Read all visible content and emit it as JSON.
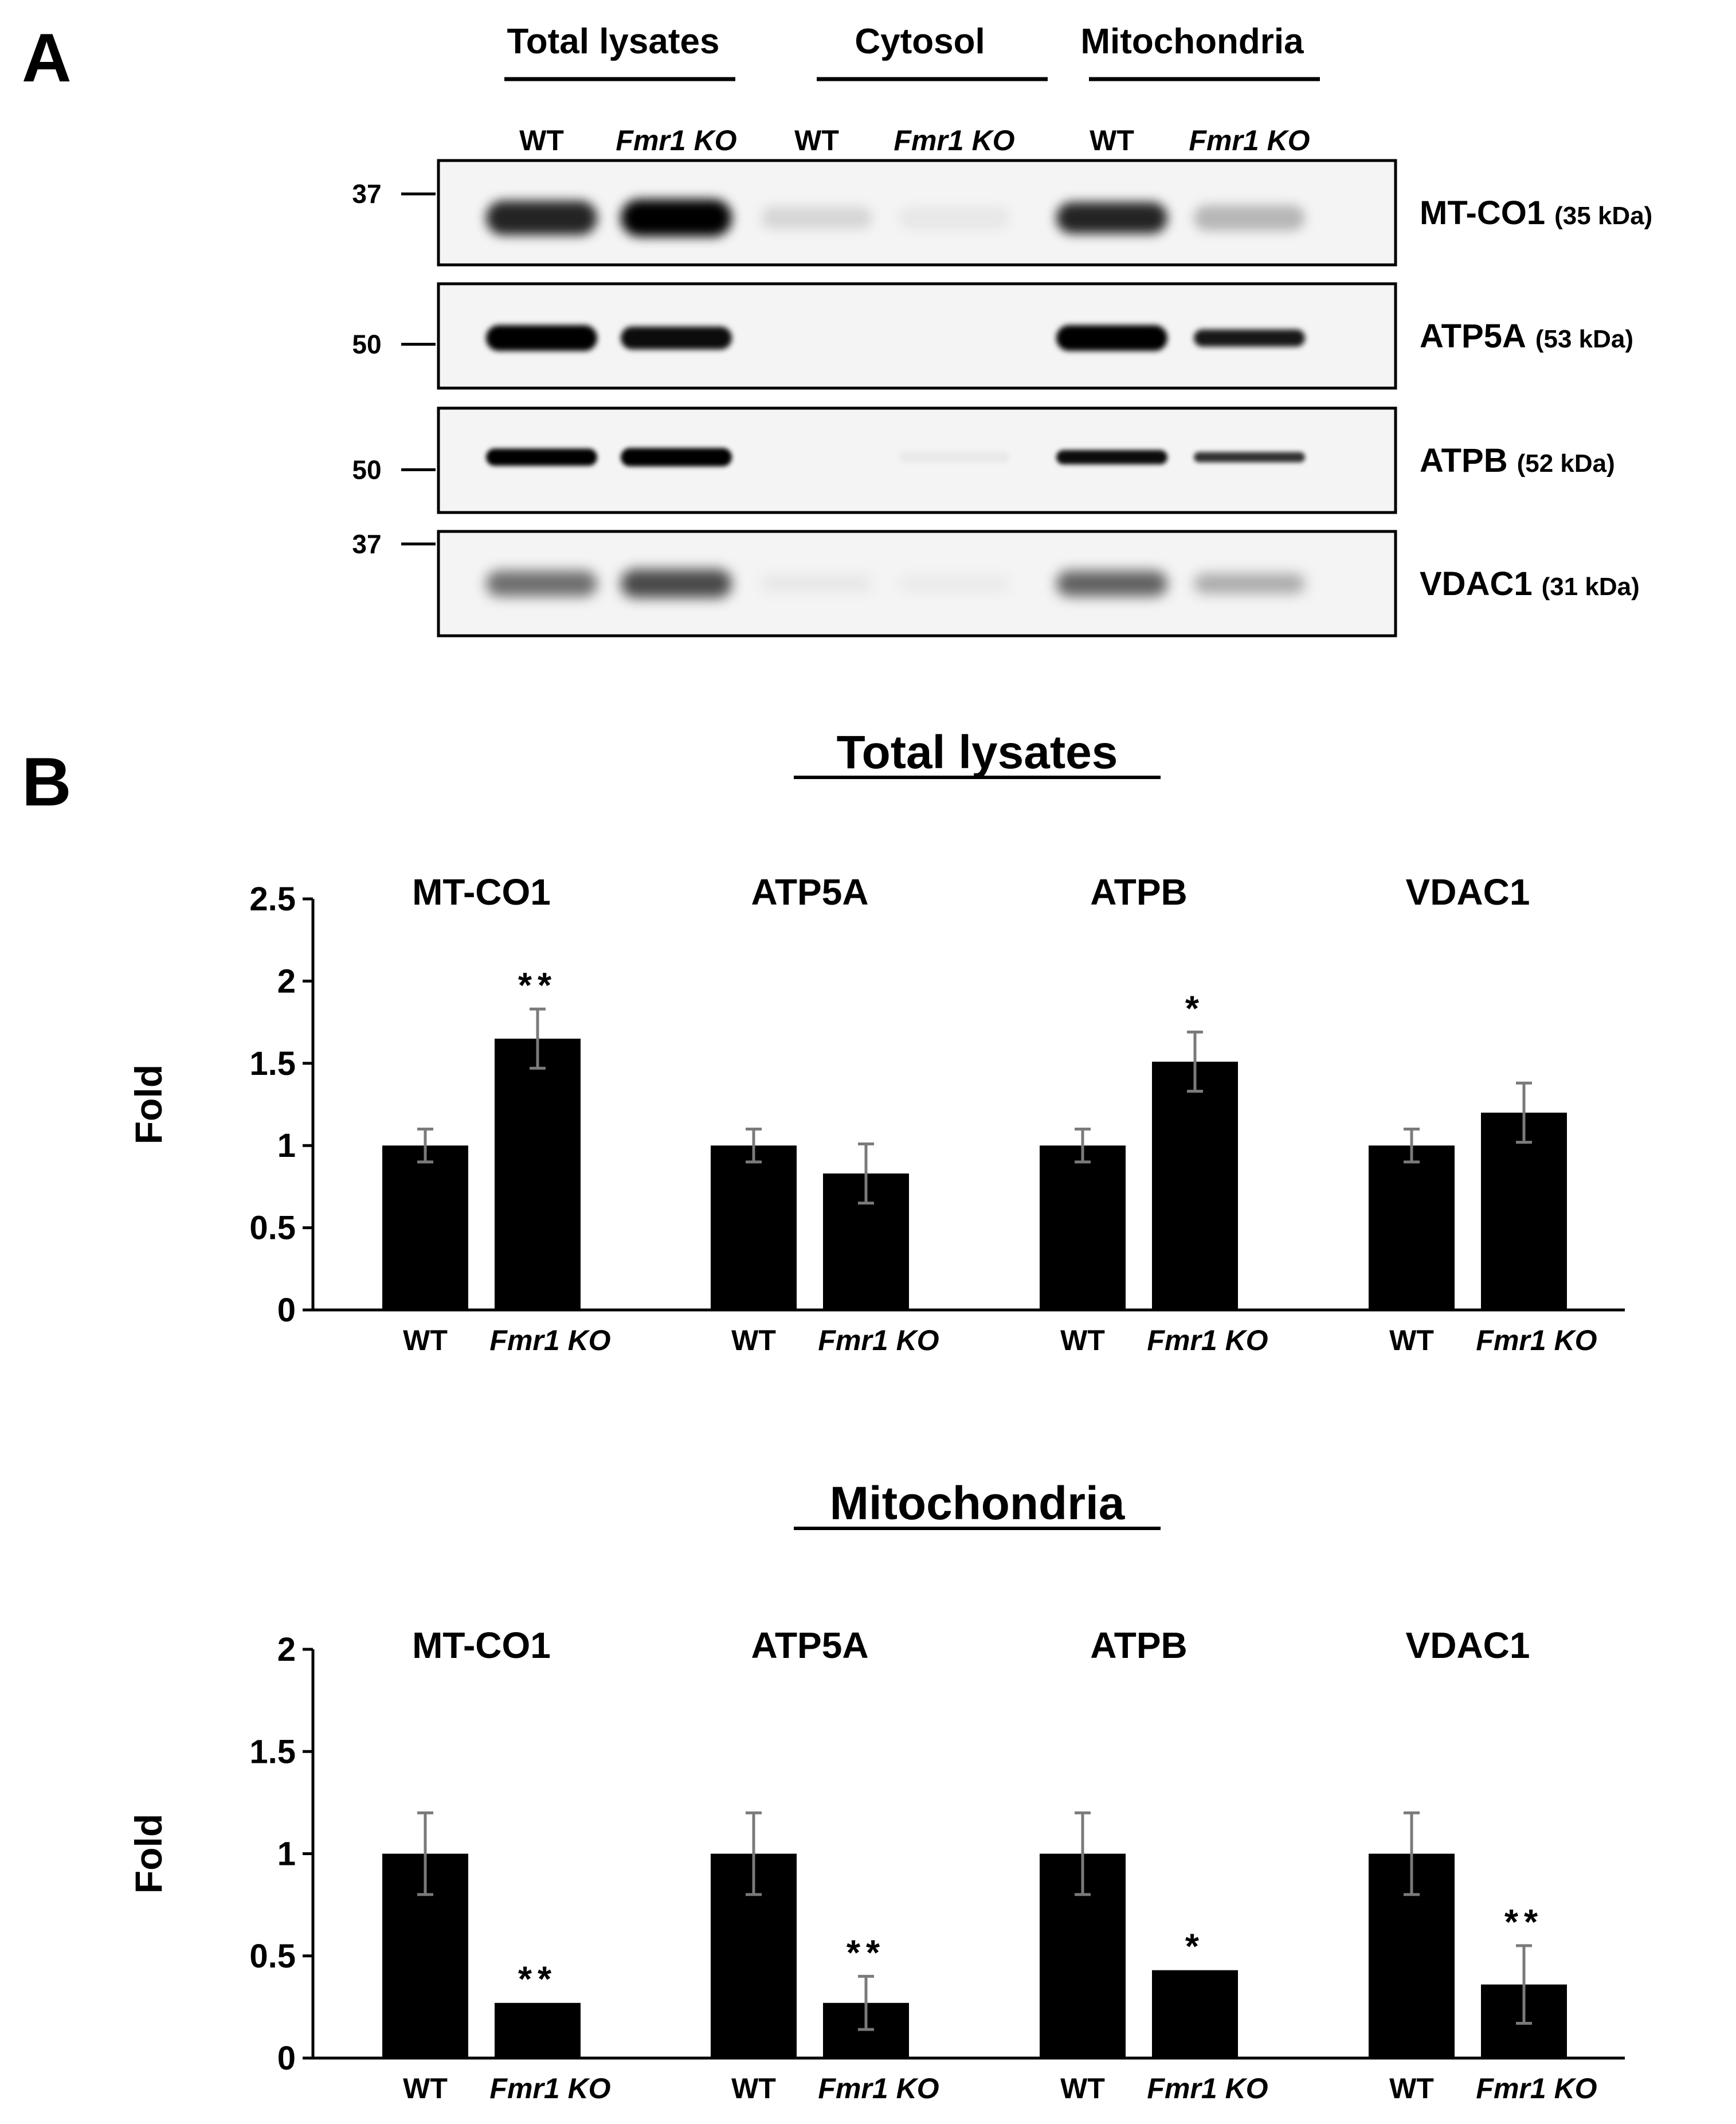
{
  "panel_a": {
    "letter": "A",
    "groups": [
      "Total lysates",
      "Cytosol",
      "Mitochondria"
    ],
    "lanes": [
      {
        "label": "WT",
        "italic": false
      },
      {
        "label": "Fmr1 KO",
        "italic": true
      },
      {
        "label": "WT",
        "italic": false
      },
      {
        "label": "Fmr1 KO",
        "italic": true
      },
      {
        "label": "WT",
        "italic": false
      },
      {
        "label": "Fmr1 KO",
        "italic": true
      }
    ],
    "blots": [
      {
        "name": "MT-CO1",
        "size": "(35 kDa)",
        "markers": [
          "37"
        ],
        "intensity": [
          0.85,
          1.0,
          0.12,
          0.05,
          0.85,
          0.25
        ],
        "band_height": [
          0.6,
          0.65,
          0.4,
          0.4,
          0.55,
          0.45
        ],
        "blur": 1.2
      },
      {
        "name": "ATP5A",
        "size": "(53 kDa)",
        "markers": [
          "50"
        ],
        "intensity": [
          1.0,
          0.95,
          0.0,
          0.0,
          1.0,
          0.9
        ],
        "band_height": [
          0.45,
          0.4,
          0.3,
          0.3,
          0.45,
          0.3
        ],
        "blur": 0.6
      },
      {
        "name": "ATPB",
        "size": "(52 kDa)",
        "markers": [
          "50"
        ],
        "intensity": [
          1.0,
          1.0,
          0.0,
          0.04,
          0.95,
          0.8
        ],
        "band_height": [
          0.3,
          0.32,
          0.2,
          0.2,
          0.25,
          0.18
        ],
        "blur": 0.5
      },
      {
        "name": "VDAC1",
        "size": "(31 kDa)",
        "markers": [
          "37"
        ],
        "intensity": [
          0.55,
          0.7,
          0.05,
          0.04,
          0.6,
          0.3
        ],
        "band_height": [
          0.45,
          0.5,
          0.3,
          0.3,
          0.45,
          0.35
        ],
        "blur": 1.4
      }
    ]
  },
  "panel_b": {
    "letter": "B",
    "x_labels": [
      {
        "label": "WT",
        "italic": false
      },
      {
        "label": "Fmr1 KO",
        "italic": true
      }
    ]
  },
  "chart_data": [
    {
      "type": "bar",
      "title": "Total lysates",
      "ylabel": "Fold",
      "ylim": [
        0,
        2.5
      ],
      "yticks": [
        "0",
        "0.5",
        "1",
        "1.5",
        "2",
        "2.5"
      ],
      "groups": [
        "MT-CO1",
        "ATP5A",
        "ATPB",
        "VDAC1"
      ],
      "categories": [
        "WT",
        "Fmr1 KO"
      ],
      "values": [
        [
          1.0,
          1.65
        ],
        [
          1.0,
          0.83
        ],
        [
          1.0,
          1.51
        ],
        [
          1.0,
          1.2
        ]
      ],
      "errors": [
        [
          0.1,
          0.18
        ],
        [
          0.1,
          0.18
        ],
        [
          0.1,
          0.18
        ],
        [
          0.1,
          0.18
        ]
      ],
      "significance": [
        [
          "",
          "**"
        ],
        [
          "",
          ""
        ],
        [
          "",
          "*"
        ],
        [
          "",
          ""
        ]
      ],
      "grid": false,
      "legend": "none"
    },
    {
      "type": "bar",
      "title": "Mitochondria",
      "ylabel": "Fold",
      "ylim": [
        0,
        2
      ],
      "yticks": [
        "0",
        "0.5",
        "1",
        "1.5",
        "2"
      ],
      "groups": [
        "MT-CO1",
        "ATP5A",
        "ATPB",
        "VDAC1"
      ],
      "categories": [
        "WT",
        "Fmr1 KO"
      ],
      "values": [
        [
          1.0,
          0.27
        ],
        [
          1.0,
          0.27
        ],
        [
          1.0,
          0.43
        ],
        [
          1.0,
          0.36
        ]
      ],
      "errors": [
        [
          0.2,
          0.0
        ],
        [
          0.2,
          0.13
        ],
        [
          0.2,
          0.0
        ],
        [
          0.2,
          0.19
        ]
      ],
      "significance": [
        [
          "",
          "**"
        ],
        [
          "",
          "**"
        ],
        [
          "",
          "*"
        ],
        [
          "",
          "**"
        ]
      ],
      "grid": false,
      "legend": "none"
    }
  ]
}
